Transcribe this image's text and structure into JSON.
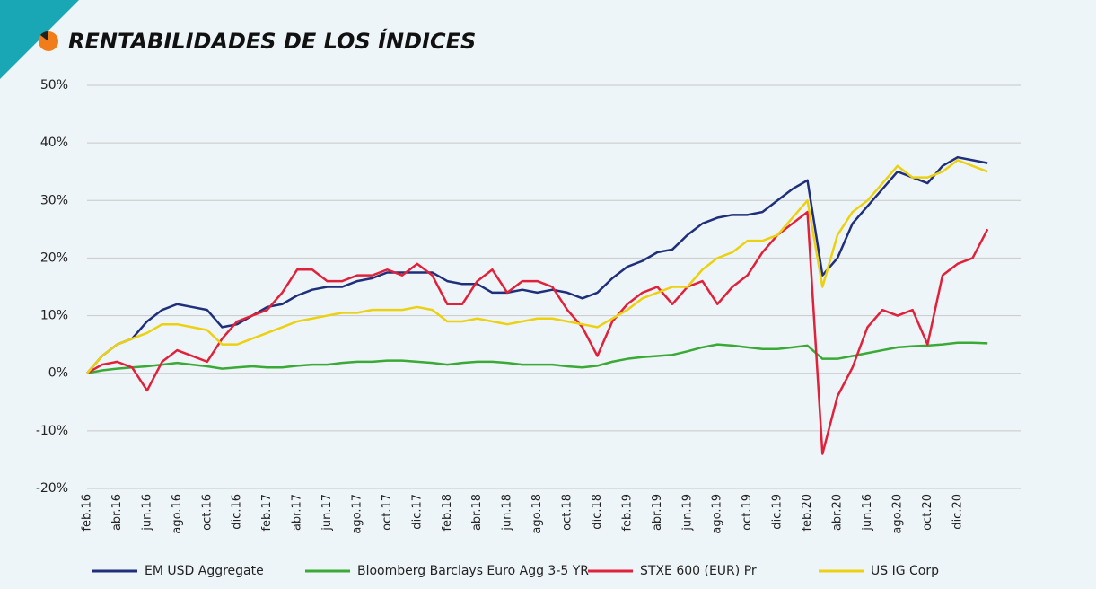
{
  "chart_data": {
    "type": "line",
    "title": "RENTABILIDADES DE LOS ÍNDICES",
    "categories": [
      "feb.16",
      null,
      "abr.16",
      null,
      "jun.16",
      null,
      "ago.16",
      null,
      "oct.16",
      null,
      "dic.16",
      null,
      "feb.17",
      null,
      "abr.17",
      null,
      "jun.17",
      null,
      "ago.17",
      null,
      "oct.17",
      null,
      "dic.17",
      null,
      "feb.18",
      null,
      "abr.18",
      null,
      "jun.18",
      null,
      "ago.18",
      null,
      "oct.18",
      null,
      "dic.18",
      null,
      "feb.19",
      null,
      "abr.19",
      null,
      "jun.19",
      null,
      "ago.19",
      null,
      "oct.19",
      null,
      "dic.19",
      null,
      "feb.20",
      null,
      "abr.20",
      null,
      "jun.16",
      null,
      "ago.20",
      null,
      "oct.20",
      null,
      "dic.20",
      null,
      null
    ],
    "series": [
      {
        "name": "EM USD Aggregate",
        "color": "#1f2f7a",
        "values": [
          0,
          3,
          5,
          6,
          9,
          11,
          12,
          11.5,
          11,
          8,
          8.5,
          10,
          11.5,
          12,
          13.5,
          14.5,
          15,
          15,
          16,
          16.5,
          17.5,
          17.5,
          17.5,
          17.5,
          16,
          15.5,
          15.5,
          14,
          14,
          14.5,
          14,
          14.5,
          14,
          13,
          14,
          16.5,
          18.5,
          19.5,
          21,
          21.5,
          24,
          26,
          27,
          27.5,
          27.5,
          28,
          30,
          32,
          33.5,
          17,
          20,
          26,
          29,
          32,
          35,
          34,
          33,
          36,
          37.5,
          37,
          36.5
        ]
      },
      {
        "name": "Bloomberg Barclays Euro Agg 3-5 YR",
        "color": "#3aa935",
        "values": [
          0,
          0.5,
          0.8,
          1,
          1.2,
          1.5,
          1.8,
          1.5,
          1.2,
          0.8,
          1,
          1.2,
          1,
          1,
          1.3,
          1.5,
          1.5,
          1.8,
          2,
          2,
          2.2,
          2.2,
          2,
          1.8,
          1.5,
          1.8,
          2,
          2,
          1.8,
          1.5,
          1.5,
          1.5,
          1.2,
          1,
          1.3,
          2,
          2.5,
          2.8,
          3,
          3.2,
          3.8,
          4.5,
          5,
          4.8,
          4.5,
          4.2,
          4.2,
          4.5,
          4.8,
          2.5,
          2.5,
          3,
          3.5,
          4,
          4.5,
          4.7,
          4.8,
          5,
          5.3,
          5.3,
          5.2
        ]
      },
      {
        "name": "STXE 600 (EUR) Pr",
        "color": "#e0213a",
        "values": [
          0,
          1.5,
          2,
          1,
          -3,
          2,
          4,
          3,
          2,
          6,
          9,
          10,
          11,
          14,
          18,
          18,
          16,
          16,
          17,
          17,
          18,
          17,
          19,
          17,
          12,
          12,
          16,
          18,
          14,
          16,
          16,
          15,
          11,
          8,
          3,
          9,
          12,
          14,
          15,
          12,
          15,
          16,
          12,
          15,
          17,
          21,
          24,
          26,
          28,
          -14,
          -4,
          1,
          8,
          11,
          10,
          11,
          5,
          17,
          19,
          20,
          25
        ]
      },
      {
        "name": "US IG Corp",
        "color": "#ecd110",
        "values": [
          0,
          3,
          5,
          6,
          7,
          8.5,
          8.5,
          8,
          7.5,
          5,
          5,
          6,
          7,
          8,
          9,
          9.5,
          10,
          10.5,
          10.5,
          11,
          11,
          11,
          11.5,
          11,
          9,
          9,
          9.5,
          9,
          8.5,
          9,
          9.5,
          9.5,
          9,
          8.5,
          8,
          9.5,
          11,
          13,
          14,
          15,
          15,
          18,
          20,
          21,
          23,
          23,
          24,
          27,
          30,
          15,
          24,
          28,
          30,
          33,
          36,
          34,
          34,
          35,
          37,
          36,
          35
        ]
      }
    ],
    "ylim": [
      -20,
      50
    ],
    "yticks": [
      {
        "value": -20,
        "label": "-20%"
      },
      {
        "value": -10,
        "label": "-10%"
      },
      {
        "value": 0,
        "label": "0%"
      },
      {
        "value": 10,
        "label": "10%"
      },
      {
        "value": 20,
        "label": "20%"
      },
      {
        "value": 30,
        "label": "30%"
      },
      {
        "value": 40,
        "label": "40%"
      },
      {
        "value": 50,
        "label": "50%"
      }
    ],
    "grid": true,
    "legend": "bottom"
  }
}
